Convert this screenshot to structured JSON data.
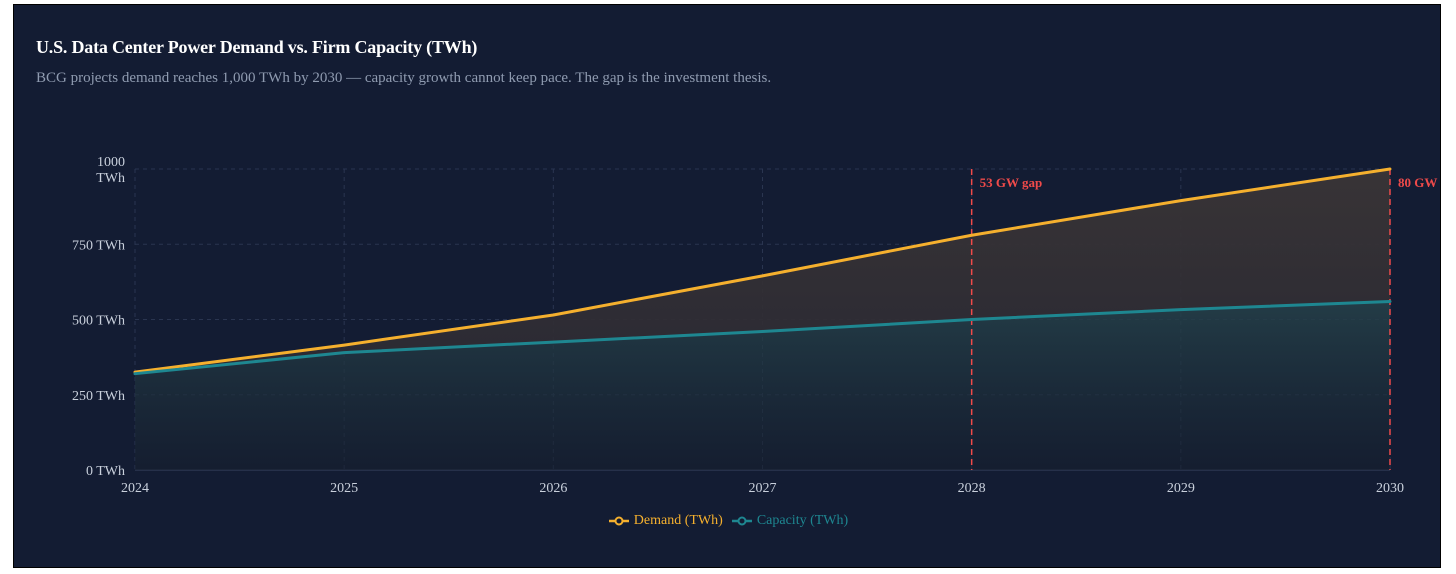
{
  "chart_data": {
    "type": "area",
    "title": "U.S. Data Center Power Demand vs. Firm Capacity (TWh)",
    "subtitle": "BCG projects demand reaches 1,000 TWh by 2030 — capacity growth cannot keep pace. The gap is the investment thesis.",
    "x": [
      "2024",
      "2025",
      "2026",
      "2027",
      "2028",
      "2029",
      "2030"
    ],
    "series": [
      {
        "name": "Demand (TWh)",
        "values": [
          325,
          415,
          515,
          645,
          780,
          895,
          1000
        ],
        "color": "#f5b02e"
      },
      {
        "name": "Capacity (TWh)",
        "values": [
          320,
          390,
          425,
          460,
          500,
          533,
          560
        ],
        "color": "#1e8791"
      }
    ],
    "y_ticks": [
      "0 TWh",
      "250 TWh",
      "500 TWh",
      "750 TWh",
      "1000 TWh"
    ],
    "y_tick_values": [
      0,
      250,
      500,
      750,
      1000
    ],
    "ylim": [
      0,
      1000
    ],
    "xlabel": "",
    "ylabel": "",
    "grid": true,
    "legend_position": "bottom-center",
    "annotations": [
      {
        "x": "2028",
        "label": "53 GW gap",
        "color": "#ef4a4a",
        "style": "dashed"
      },
      {
        "x": "2030",
        "label": "80 GW",
        "color": "#ef4a4a",
        "style": "dashed"
      }
    ]
  }
}
